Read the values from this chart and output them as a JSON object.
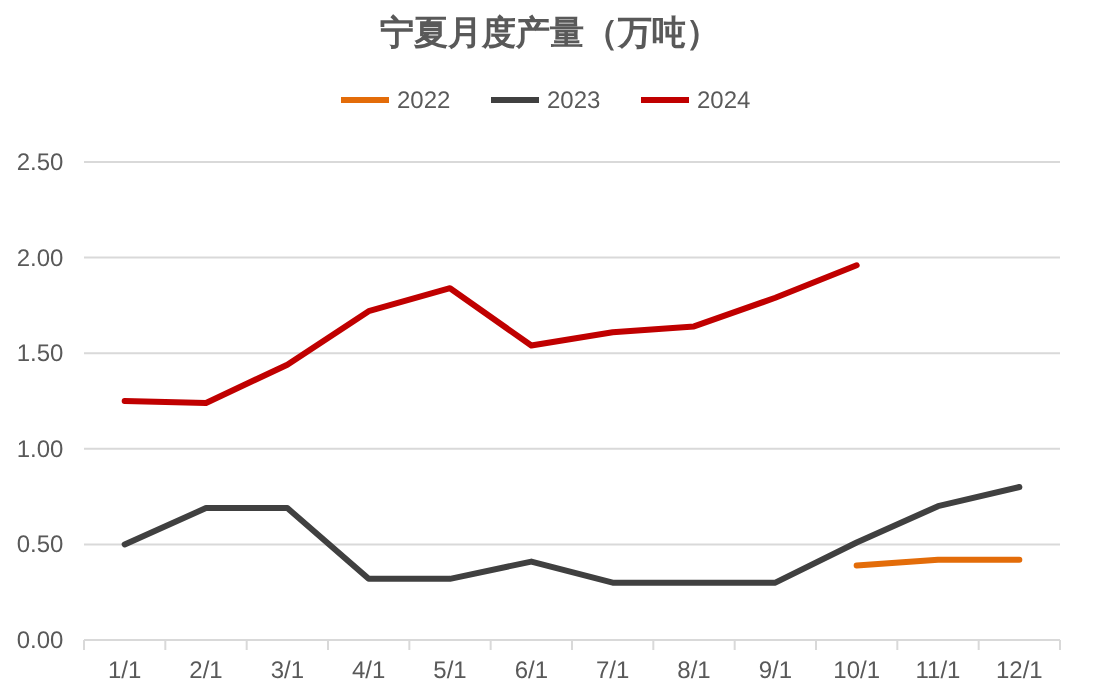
{
  "chart_data": {
    "type": "line",
    "title": "宁夏月度产量（万吨）",
    "categories": [
      "1/1",
      "2/1",
      "3/1",
      "4/1",
      "5/1",
      "6/1",
      "7/1",
      "8/1",
      "9/1",
      "10/1",
      "11/1",
      "12/1"
    ],
    "series": [
      {
        "name": "2022",
        "color": "#e36c09",
        "values": [
          null,
          null,
          null,
          null,
          null,
          null,
          null,
          null,
          null,
          0.39,
          0.42,
          0.42
        ]
      },
      {
        "name": "2023",
        "color": "#404040",
        "values": [
          0.5,
          0.69,
          0.69,
          0.32,
          0.32,
          0.41,
          0.3,
          0.3,
          0.3,
          0.51,
          0.7,
          0.8
        ]
      },
      {
        "name": "2024",
        "color": "#c00000",
        "values": [
          1.25,
          1.24,
          1.44,
          1.72,
          1.84,
          1.54,
          1.61,
          1.64,
          1.79,
          1.96,
          null,
          null
        ]
      }
    ],
    "ylim": [
      0,
      2.5
    ],
    "yticks": [
      {
        "value": 0,
        "label": "0.00"
      },
      {
        "value": 0.5,
        "label": "0.50"
      },
      {
        "value": 1,
        "label": "1.00"
      },
      {
        "value": 1.5,
        "label": "1.50"
      },
      {
        "value": 2,
        "label": "2.00"
      },
      {
        "value": 2.5,
        "label": "2.50"
      }
    ],
    "grid": "y",
    "legend": "top",
    "marker": "none",
    "line_style": "solid"
  }
}
